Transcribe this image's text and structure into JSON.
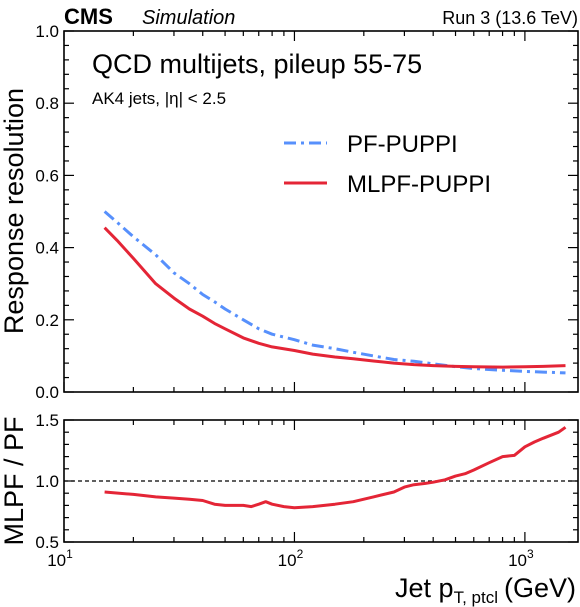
{
  "header": {
    "experiment": "CMS",
    "experiment_tag": "Simulation",
    "run_info": "Run 3 (13.6 TeV)"
  },
  "chart_data": [
    {
      "type": "line",
      "title": "QCD multijets, pileup 55-75",
      "subtitle": "AK4 jets, |η| < 2.5",
      "xlabel": "",
      "ylabel": "Response resolution",
      "xscale": "log",
      "xlim": [
        10,
        1700
      ],
      "ylim": [
        0.0,
        1.0
      ],
      "yticks": [
        0.0,
        0.2,
        0.4,
        0.6,
        0.8,
        1.0
      ],
      "ytick_labels": [
        "0.0",
        "0.2",
        "0.4",
        "0.6",
        "0.8",
        "1.0"
      ],
      "legend_position": "upper-right",
      "series": [
        {
          "name": "PF-PUPPI",
          "color": "#5790fc",
          "style": "dashdot",
          "x": [
            15,
            17,
            20,
            25,
            30,
            35,
            40,
            45,
            50,
            60,
            70,
            80,
            100,
            120,
            150,
            180,
            220,
            270,
            330,
            400,
            500,
            600,
            800,
            1000,
            1200,
            1500
          ],
          "y": [
            0.5,
            0.47,
            0.43,
            0.38,
            0.33,
            0.3,
            0.27,
            0.25,
            0.23,
            0.2,
            0.175,
            0.16,
            0.145,
            0.13,
            0.12,
            0.11,
            0.1,
            0.09,
            0.085,
            0.078,
            0.07,
            0.065,
            0.06,
            0.057,
            0.055,
            0.053
          ]
        },
        {
          "name": "MLPF-PUPPI",
          "color": "#e42536",
          "style": "solid",
          "x": [
            15,
            17,
            20,
            25,
            30,
            35,
            40,
            45,
            50,
            60,
            70,
            80,
            100,
            120,
            150,
            180,
            220,
            270,
            330,
            400,
            500,
            600,
            800,
            1000,
            1200,
            1500
          ],
          "y": [
            0.455,
            0.42,
            0.37,
            0.3,
            0.26,
            0.23,
            0.21,
            0.19,
            0.175,
            0.15,
            0.135,
            0.125,
            0.115,
            0.105,
            0.097,
            0.092,
            0.086,
            0.08,
            0.076,
            0.073,
            0.071,
            0.07,
            0.069,
            0.07,
            0.071,
            0.073
          ]
        }
      ]
    },
    {
      "type": "line",
      "xlabel": "Jet p",
      "xlabel_sub": "T, ptcl",
      "xlabel_unit": "(GeV)",
      "ylabel": "MLPF / PF",
      "xscale": "log",
      "xlim": [
        10,
        1700
      ],
      "ylim": [
        0.5,
        1.5
      ],
      "yticks": [
        0.5,
        1.0,
        1.5
      ],
      "ytick_labels": [
        "0.5",
        "1.0",
        "1.5"
      ],
      "xticks": [
        10,
        100,
        1000
      ],
      "xtick_base": [
        "10",
        "10",
        "10"
      ],
      "xtick_exp": [
        "1",
        "2",
        "3"
      ],
      "reference_line": 1.0,
      "series": [
        {
          "color": "#e42536",
          "style": "solid",
          "x": [
            15,
            20,
            25,
            30,
            35,
            40,
            45,
            50,
            60,
            65,
            70,
            75,
            80,
            90,
            100,
            120,
            150,
            180,
            220,
            270,
            300,
            330,
            370,
            400,
            450,
            500,
            550,
            600,
            700,
            800,
            900,
            1000,
            1100,
            1200,
            1400,
            1500
          ],
          "y": [
            0.91,
            0.89,
            0.87,
            0.86,
            0.85,
            0.84,
            0.81,
            0.8,
            0.8,
            0.79,
            0.81,
            0.83,
            0.81,
            0.79,
            0.78,
            0.79,
            0.81,
            0.83,
            0.87,
            0.91,
            0.95,
            0.97,
            0.98,
            0.99,
            1.01,
            1.04,
            1.06,
            1.09,
            1.15,
            1.2,
            1.21,
            1.28,
            1.32,
            1.35,
            1.4,
            1.44
          ]
        }
      ]
    }
  ]
}
